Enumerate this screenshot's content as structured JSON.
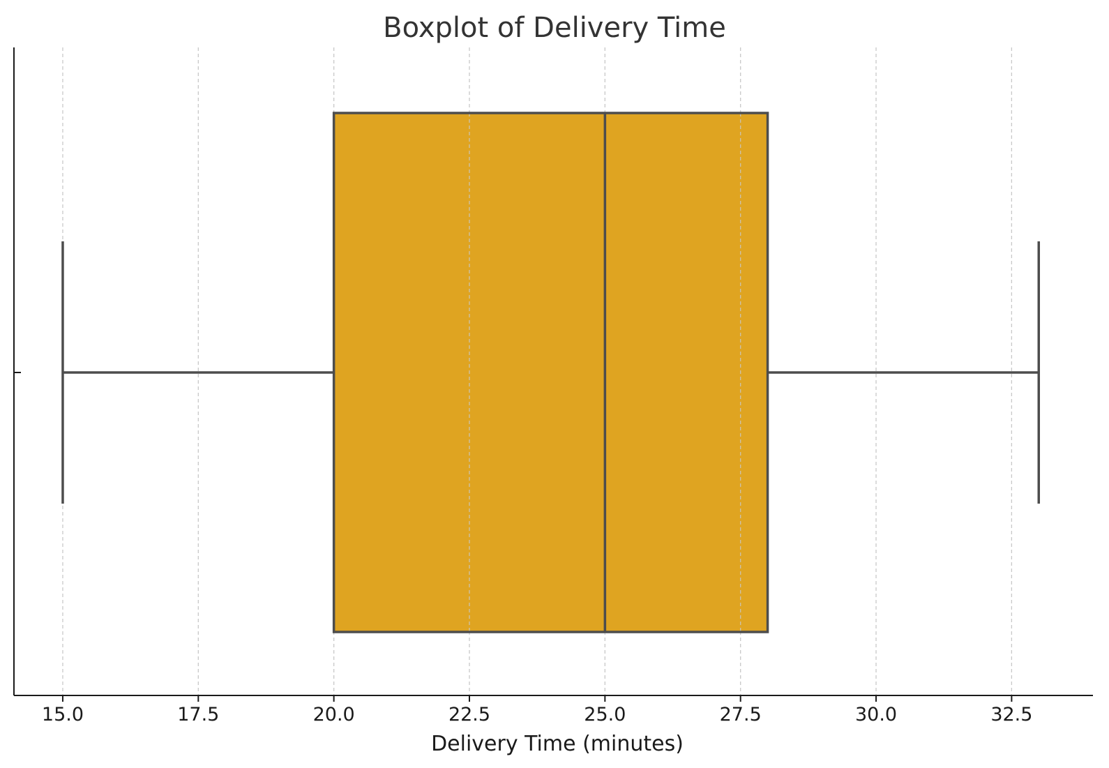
{
  "chart_data": {
    "type": "boxplot",
    "title": "Boxplot of Delivery Time",
    "xlabel": "Delivery Time (minutes)",
    "ylabel": "",
    "xlim": [
      14.1,
      34.0
    ],
    "orientation": "horizontal",
    "grid": "x-dashed",
    "ticks": [
      15.0,
      17.5,
      20.0,
      22.5,
      25.0,
      27.5,
      30.0,
      32.5
    ],
    "tick_labels": [
      "15.0",
      "17.5",
      "20.0",
      "22.5",
      "25.0",
      "27.5",
      "30.0",
      "32.5"
    ],
    "box": {
      "min": 15,
      "q1": 20,
      "median": 25,
      "q3": 28,
      "max": 33
    },
    "colors": {
      "box_fill": "#dfa421",
      "line": "#4d4d4d",
      "grid": "#c8c8c8",
      "axis": "#1a1a1a"
    }
  }
}
